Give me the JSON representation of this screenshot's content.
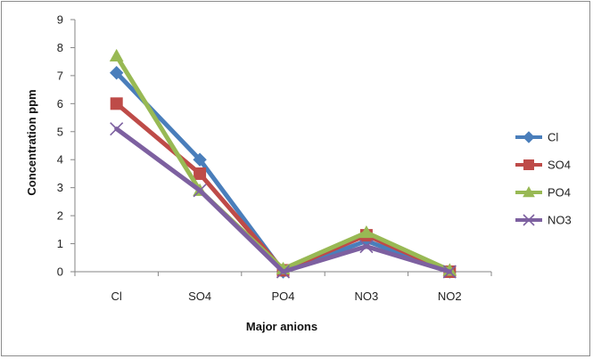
{
  "chart_data": {
    "type": "line",
    "title": "",
    "xlabel": "Major anions",
    "ylabel": "Concentration ppm",
    "categories": [
      "Cl",
      "SO4",
      "PO4",
      "NO3",
      "NO2"
    ],
    "yticks": [
      "0",
      "1",
      "2",
      "3",
      "4",
      "5",
      "6",
      "7",
      "8",
      "9"
    ],
    "ylim": [
      0,
      9
    ],
    "grid": false,
    "legend": "right",
    "series": [
      {
        "name": "Cl",
        "color": "#4a7ebb",
        "marker": "diamond",
        "values": [
          7.1,
          4.0,
          0.0,
          1.1,
          0.0
        ]
      },
      {
        "name": "SO4",
        "color": "#be4b48",
        "marker": "square",
        "values": [
          6.0,
          3.5,
          0.05,
          1.3,
          0.0
        ]
      },
      {
        "name": "PO4",
        "color": "#98b954",
        "marker": "triangle",
        "values": [
          7.7,
          2.9,
          0.1,
          1.4,
          0.05
        ]
      },
      {
        "name": "NO3",
        "color": "#7d60a0",
        "marker": "x",
        "values": [
          5.1,
          2.9,
          0.0,
          0.9,
          0.0
        ]
      }
    ]
  }
}
